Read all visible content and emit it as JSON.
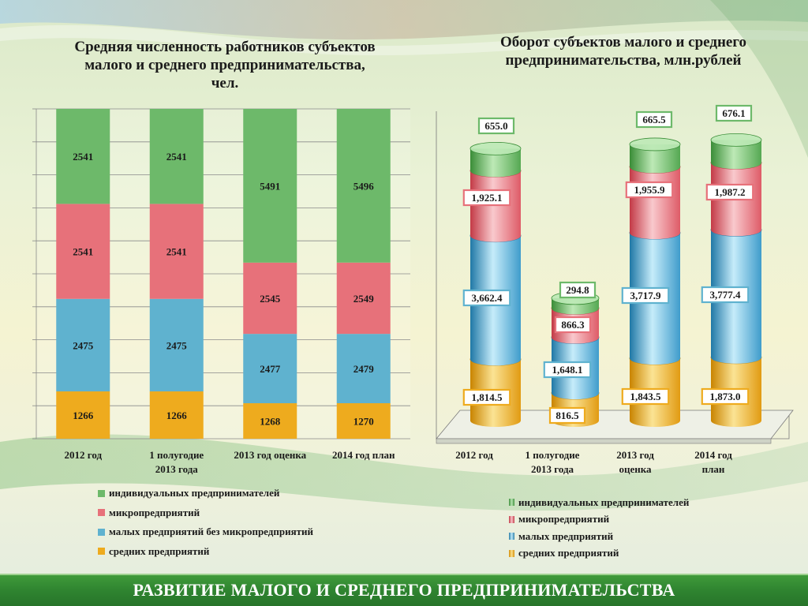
{
  "slide": {
    "footer": "РАЗВИТИЕ МАЛОГО И СРЕДНЕГО ПРЕДПРИНИМАТЕЛЬСТВА"
  },
  "colors": {
    "individual": "#6db96a",
    "micro": "#e7717a",
    "small": "#5fb2cf",
    "medium": "#eeab1e",
    "footer": "#2f8430"
  },
  "chart_data": [
    {
      "type": "bar",
      "stacked": true,
      "percent_stacked": true,
      "title": "Средняя численность работников субъектов малого и среднего предпринимательства, чел.",
      "categories": [
        "2012 год",
        "1 полугодие 2013 года",
        "2013 год оценка",
        "2014 год план"
      ],
      "series": [
        {
          "name": "средних предприятий",
          "color": "#eeab1e",
          "values": [
            1266,
            1266,
            1268,
            1270
          ]
        },
        {
          "name": "малых предприятий без микропредприятий",
          "color": "#5fb2cf",
          "values": [
            2475,
            2475,
            2477,
            2479
          ]
        },
        {
          "name": "микропредприятий",
          "color": "#e7717a",
          "values": [
            2541,
            2541,
            2545,
            2549
          ]
        },
        {
          "name": "индивидуальных предпринимателей",
          "color": "#6db96a",
          "values": [
            2541,
            2541,
            5491,
            5496
          ]
        }
      ],
      "legend": [
        "индивидуальных предпринимателей",
        "микропредприятий",
        "малых предприятий без микропредприятий",
        "средних предприятий"
      ],
      "legend_position": "bottom",
      "grid": true
    },
    {
      "type": "bar",
      "stacked": true,
      "style": "3d-cylinder",
      "title": "Оборот субъектов малого и среднего предпринимательства, млн.рублей",
      "categories": [
        "2012 год",
        "1 полугодие 2013 года",
        "2013 год оценка",
        "2014 год план"
      ],
      "series": [
        {
          "name": "средних предприятий",
          "color": "#eeab1e",
          "values": [
            1814.5,
            816.5,
            1843.5,
            1873.0
          ],
          "labels": [
            "1,814.5",
            "816.5",
            "1,843.5",
            "1,873.0"
          ]
        },
        {
          "name": "малых предприятий",
          "color": "#5fb2cf",
          "values": [
            3662.4,
            1648.1,
            3717.9,
            3777.4
          ],
          "labels": [
            "3,662.4",
            "1,648.1",
            "3,717.9",
            "3,777.4"
          ]
        },
        {
          "name": "микропредприятий",
          "color": "#e7717a",
          "values": [
            1925.1,
            866.3,
            1955.9,
            1987.2
          ],
          "labels": [
            "1,925.1",
            "866.3",
            "1,955.9",
            "1,987.2"
          ]
        },
        {
          "name": "индивидуальных предпринимателей",
          "color": "#6db96a",
          "values": [
            655.0,
            294.8,
            665.5,
            676.1
          ],
          "labels": [
            "655.0",
            "294.8",
            "665.5",
            "676.1"
          ]
        }
      ],
      "legend": [
        "индивидуальных предпринимателей",
        "микропредприятий",
        "малых предприятий",
        "средних предприятий"
      ],
      "legend_position": "bottom",
      "grid": false
    }
  ]
}
